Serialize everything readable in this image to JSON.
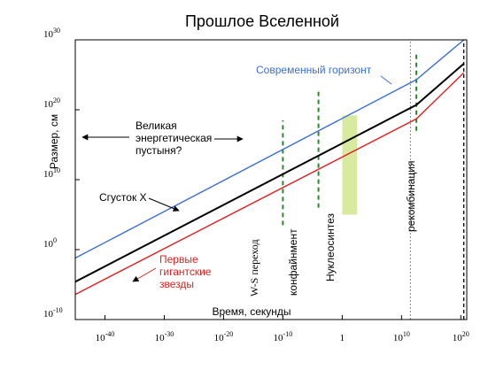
{
  "chart_data": {
    "type": "line",
    "title": "Прошлое Вселенной",
    "xlabel": "Время, секунды",
    "ylabel": "Размер, см",
    "x_scale": "log",
    "y_scale": "log",
    "xlim_exp": [
      -45,
      21
    ],
    "ylim_exp": [
      -10,
      30
    ],
    "x_ticks": [
      {
        "exp": -40,
        "label": "10",
        "sup": "-40"
      },
      {
        "exp": -30,
        "label": "10",
        "sup": "-30"
      },
      {
        "exp": -20,
        "label": "10",
        "sup": "-20"
      },
      {
        "exp": -10,
        "label": "10",
        "sup": "-10"
      },
      {
        "exp": 0,
        "label": "1",
        "sup": ""
      },
      {
        "exp": 10,
        "label": "10",
        "sup": "10"
      },
      {
        "exp": 20,
        "label": "10",
        "sup": "20"
      }
    ],
    "y_ticks": [
      {
        "exp": -10,
        "label": "10",
        "sup": "-10"
      },
      {
        "exp": 0,
        "label": "10",
        "sup": "0"
      },
      {
        "exp": 10,
        "label": "10",
        "sup": "10"
      },
      {
        "exp": 20,
        "label": "10",
        "sup": "20"
      },
      {
        "exp": 30,
        "label": "10",
        "sup": "30"
      }
    ],
    "series": [
      {
        "name": "Современный горизонт",
        "color": "#3d6fd4",
        "points": [
          [
            -45,
            -1.2
          ],
          [
            12.5,
            24.3
          ],
          [
            20.5,
            30.0
          ]
        ]
      },
      {
        "name": "Сгусток X",
        "color": "#000000",
        "points": [
          [
            -45,
            -4.6
          ],
          [
            12.5,
            20.7
          ],
          [
            20.5,
            26.6
          ]
        ]
      },
      {
        "name": "Первые гигантские звезды",
        "color": "#e02020",
        "points": [
          [
            -45,
            -6.4
          ],
          [
            12.5,
            18.7
          ],
          [
            20.5,
            25.3
          ]
        ]
      }
    ],
    "vlines": [
      {
        "label": "W-S переход",
        "x": -10,
        "y_range": [
          3.5,
          18.5
        ],
        "style": "dashed-green"
      },
      {
        "label": "конфайнмент",
        "x": -4,
        "y_range": [
          6.0,
          22.7
        ],
        "style": "dashed-green"
      },
      {
        "label": "рекомбинация",
        "x": 12.5,
        "y_range": [
          17.0,
          28.0
        ],
        "style": "dashed-green"
      },
      {
        "label": "",
        "x": 11.5,
        "y_range": [
          -10,
          30
        ],
        "style": "dotted-grey"
      },
      {
        "label": "",
        "x": 20.5,
        "y_range": [
          -10,
          30
        ],
        "style": "dashed-black"
      }
    ],
    "band": {
      "label": "Нуклеосинтез",
      "x_range": [
        0,
        2.5
      ],
      "y_range": [
        5.0,
        19.2
      ],
      "color": "#d8eaa0"
    },
    "annotations": {
      "desert": [
        "Великая",
        "энергетическая",
        "пустыня?"
      ],
      "clump": "Сгусток X",
      "stars": [
        "Первые",
        "гигантские",
        "звезды"
      ],
      "horizon": "Современный горизонт"
    }
  }
}
